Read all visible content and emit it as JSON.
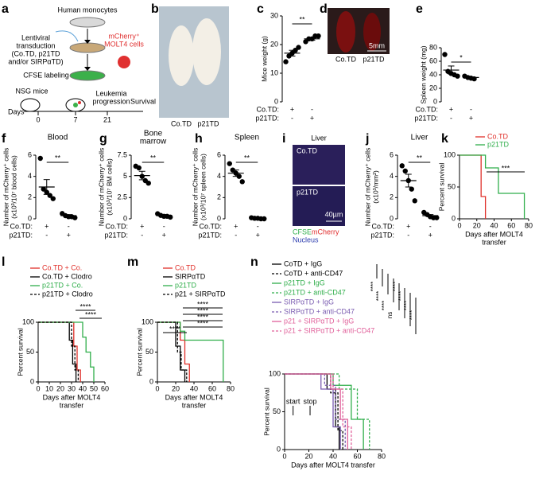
{
  "panel_labels": [
    "a",
    "b",
    "c",
    "d",
    "e",
    "f",
    "g",
    "h",
    "i",
    "j",
    "k",
    "l",
    "m",
    "n"
  ],
  "schematic": {
    "top": "Human monocytes",
    "transduction": [
      "Lentiviral",
      "transduction",
      "(Co.TD, p21TD",
      "and/or SIRPαTD)"
    ],
    "cells": [
      "mCherry⁺",
      "MOLT4 cells"
    ],
    "labeling": "CFSE labeling",
    "mice": "NSG mice",
    "days": "Days",
    "timeline": [
      0,
      7,
      21
    ],
    "progression": [
      "Leukemia",
      "progression"
    ],
    "survival": "Survival"
  },
  "photo_b": {
    "labels": [
      "Co.TD",
      "p21TD"
    ]
  },
  "photo_d": {
    "labels": [
      "Co.TD",
      "p21TD"
    ],
    "scale": "5mm"
  },
  "photo_i": {
    "title": "Liver",
    "top": "Co.TD",
    "bottom": "p21TD",
    "scale": "40µm",
    "legend": [
      "CFSE",
      "mCherry",
      "Nucleus"
    ]
  },
  "chart_data": [
    {
      "type": "dot",
      "ylabel": [
        "Mice weight (g)"
      ],
      "ylim": [
        0,
        30
      ],
      "yticks": [
        0,
        10,
        20,
        30
      ],
      "significance": "**",
      "rows": [
        {
          "label": "Co.TD:",
          "signs": [
            "+",
            "-"
          ]
        },
        {
          "label": "p21TD:",
          "signs": [
            "-",
            "+"
          ]
        }
      ],
      "series": [
        {
          "values": [
            14,
            16,
            17,
            18,
            19
          ],
          "mean": 17,
          "sem": 1
        },
        {
          "values": [
            21,
            22,
            22,
            23,
            23
          ],
          "mean": 22,
          "sem": 0.5
        }
      ]
    },
    {
      "type": "dot",
      "ylabel": [
        "Spleen weight (mg)"
      ],
      "ylim": [
        0,
        80
      ],
      "yticks": [
        0,
        20,
        40,
        60,
        80
      ],
      "significance": "*",
      "rows": [
        {
          "label": "Co.TD:",
          "signs": [
            "+",
            "-"
          ]
        },
        {
          "label": "p21TD:",
          "signs": [
            "-",
            "+"
          ]
        }
      ],
      "series": [
        {
          "values": [
            70,
            45,
            42,
            40,
            38
          ],
          "mean": 47,
          "sem": 6
        },
        {
          "values": [
            38,
            36,
            35,
            34
          ],
          "mean": 36,
          "sem": 1
        }
      ]
    },
    {
      "type": "dot",
      "title": [
        "Blood"
      ],
      "ylabel": [
        "Number of mCherry⁺ cells",
        "(x10³/10⁷ blood cells)"
      ],
      "ylim": [
        0,
        6
      ],
      "yticks": [
        0,
        2,
        4,
        6
      ],
      "significance": "**",
      "rows": [
        {
          "label": "Co.TD:",
          "signs": [
            "+",
            "-"
          ]
        },
        {
          "label": "p21TD:",
          "signs": [
            "-",
            "+"
          ]
        }
      ],
      "series": [
        {
          "values": [
            5.7,
            2.8,
            2.5,
            2.2,
            1.9
          ],
          "mean": 3,
          "sem": 0.7
        },
        {
          "values": [
            0.5,
            0.3,
            0.2,
            0.2,
            0.1
          ],
          "mean": 0.3,
          "sem": 0.1
        }
      ]
    },
    {
      "type": "dot",
      "title": [
        "Bone",
        "marrow"
      ],
      "ylabel": [
        "Number of mCherry⁺ cells",
        "(x10³/10⁷ BM cells)"
      ],
      "ylim": [
        0,
        7.5
      ],
      "yticks": [
        0,
        2.5,
        5,
        7.5
      ],
      "significance": "**",
      "rows": [
        {
          "label": "Co.TD:",
          "signs": [
            "+",
            "-"
          ]
        },
        {
          "label": "p21TD:",
          "signs": [
            "-",
            "+"
          ]
        }
      ],
      "series": [
        {
          "values": [
            6.2,
            6,
            5,
            4.5,
            4.2
          ],
          "mean": 5.1,
          "sem": 0.5
        },
        {
          "values": [
            0.6,
            0.4,
            0.3,
            0.3,
            0.2
          ],
          "mean": 0.4,
          "sem": 0.1
        }
      ]
    },
    {
      "type": "dot",
      "title": [
        "Spleen"
      ],
      "ylabel": [
        "Number of mCherry⁺ cells",
        "(x10³/10⁷ spleen cells)"
      ],
      "ylim": [
        0,
        6
      ],
      "yticks": [
        0,
        2,
        4,
        6
      ],
      "significance": "**",
      "rows": [
        {
          "label": "Co.TD:",
          "signs": [
            "+",
            "-"
          ]
        },
        {
          "label": "p21TD:",
          "signs": [
            "-",
            "+"
          ]
        }
      ],
      "series": [
        {
          "values": [
            5.2,
            4.6,
            4.3,
            4,
            3.5
          ],
          "mean": 4.3,
          "sem": 0.3
        },
        {
          "values": [
            0.1,
            0.05,
            0.05,
            0,
            0
          ],
          "mean": 0.05,
          "sem": 0.02
        }
      ]
    },
    {
      "type": "dot",
      "title": [
        "Liver"
      ],
      "ylabel": [
        "Number of mCherry⁺ cells",
        "(x10³/mm²)"
      ],
      "ylim": [
        0,
        6
      ],
      "yticks": [
        0,
        2,
        4,
        6
      ],
      "significance": "**",
      "rows": [
        {
          "label": "Co.TD:",
          "signs": [
            "+",
            "-"
          ]
        },
        {
          "label": "p21TD:",
          "signs": [
            "-",
            "+"
          ]
        }
      ],
      "series": [
        {
          "values": [
            5,
            4.5,
            3.6,
            2.8,
            1.7
          ],
          "mean": 3.6,
          "sem": 0.6
        },
        {
          "values": [
            0.6,
            0.4,
            0.2,
            0.1,
            0.1
          ],
          "mean": 0.3,
          "sem": 0.1
        }
      ]
    },
    {
      "type": "survival",
      "ylabel": "Percent survival",
      "xlabel": [
        "Days after MOLT4",
        "transfer"
      ],
      "xlim": [
        0,
        80
      ],
      "xticks": [
        0,
        20,
        40,
        60,
        80
      ],
      "ylim": [
        0,
        100
      ],
      "yticks": [
        0,
        50,
        100
      ],
      "significance": [
        "***"
      ],
      "series": [
        {
          "name": "Co.TD",
          "color": "#e0302a",
          "dash": false,
          "x": [
            0,
            25,
            25,
            30,
            30
          ],
          "y": [
            100,
            100,
            35,
            35,
            0
          ]
        },
        {
          "name": "p21TD",
          "color": "#2fae4a",
          "dash": false,
          "x": [
            0,
            30,
            30,
            45,
            45,
            75,
            75
          ],
          "y": [
            100,
            100,
            80,
            80,
            40,
            40,
            0
          ]
        }
      ]
    },
    {
      "type": "survival",
      "ylabel": "Percent survival",
      "xlabel": [
        "Days after MOLT4",
        "transfer"
      ],
      "xlim": [
        0,
        60
      ],
      "xticks": [
        0,
        10,
        20,
        30,
        40,
        50,
        60
      ],
      "ylim": [
        0,
        100
      ],
      "yticks": [
        0,
        50,
        100
      ],
      "significance": [
        "****",
        "****"
      ],
      "series": [
        {
          "name": "Co.TD + Co.",
          "color": "#e0302a",
          "dash": false,
          "x": [
            0,
            32,
            32,
            35,
            35,
            38,
            38
          ],
          "y": [
            100,
            100,
            60,
            60,
            20,
            20,
            0
          ]
        },
        {
          "name": "Co.TD + Clodro",
          "color": "#000000",
          "dash": false,
          "x": [
            0,
            28,
            28,
            31,
            31,
            34,
            34
          ],
          "y": [
            100,
            100,
            70,
            70,
            30,
            30,
            0
          ]
        },
        {
          "name": "p21TD + Co.",
          "color": "#2fae4a",
          "dash": false,
          "x": [
            0,
            40,
            40,
            43,
            43,
            47,
            47,
            50,
            50
          ],
          "y": [
            100,
            100,
            75,
            75,
            50,
            50,
            25,
            25,
            0
          ]
        },
        {
          "name": "p21TD + Clodro",
          "color": "#000000",
          "dash": true,
          "x": [
            0,
            30,
            30,
            33,
            33,
            36,
            36
          ],
          "y": [
            100,
            100,
            60,
            60,
            20,
            20,
            0
          ]
        }
      ]
    },
    {
      "type": "survival",
      "ylabel": "Percent survival",
      "xlabel": [
        "Days after MOLT4",
        "transfer"
      ],
      "xlim": [
        0,
        80
      ],
      "xticks": [
        0,
        20,
        40,
        60,
        80
      ],
      "ylim": [
        0,
        100
      ],
      "yticks": [
        0,
        50,
        100
      ],
      "significance": [
        "****",
        "****",
        "****",
        "****",
        "****"
      ],
      "series": [
        {
          "name": "Co.TD",
          "color": "#e0302a",
          "dash": false,
          "x": [
            0,
            25,
            25,
            30,
            30,
            35,
            35
          ],
          "y": [
            100,
            100,
            70,
            70,
            30,
            30,
            0
          ]
        },
        {
          "name": "SIRPαTD",
          "color": "#000000",
          "dash": false,
          "x": [
            0,
            20,
            20,
            25,
            25,
            30,
            30
          ],
          "y": [
            100,
            100,
            60,
            60,
            20,
            20,
            0
          ]
        },
        {
          "name": "p21TD",
          "color": "#2fae4a",
          "dash": false,
          "x": [
            0,
            25,
            25,
            30,
            30,
            72,
            72
          ],
          "y": [
            100,
            100,
            85,
            85,
            70,
            70,
            0
          ]
        },
        {
          "name": "p21 + SIRPαTD",
          "color": "#000000",
          "dash": true,
          "x": [
            0,
            22,
            22,
            26,
            26,
            32,
            32
          ],
          "y": [
            100,
            100,
            50,
            50,
            20,
            20,
            0
          ]
        }
      ]
    },
    {
      "type": "survival",
      "ylabel": "Percent survival",
      "xlabel": [
        "Days after MOLT4 transfer"
      ],
      "xlim": [
        0,
        80
      ],
      "xticks": [
        0,
        20,
        40,
        60,
        80
      ],
      "ylim": [
        0,
        100
      ],
      "yticks": [
        0,
        50,
        100
      ],
      "significance": [
        "****",
        "****",
        "****",
        "ns",
        "****",
        "****",
        "****",
        "****"
      ],
      "annotations": [
        {
          "label": "start",
          "x": 7
        },
        {
          "label": "stop",
          "x": 21
        }
      ],
      "series": [
        {
          "name": "CoTD + IgG",
          "color": "#000000",
          "dash": false,
          "x": [
            0,
            35,
            35,
            42,
            42,
            45,
            45
          ],
          "y": [
            100,
            100,
            80,
            80,
            30,
            30,
            0
          ]
        },
        {
          "name": "CoTD + anti-CD47",
          "color": "#000000",
          "dash": true,
          "x": [
            0,
            38,
            38,
            44,
            44,
            48,
            48
          ],
          "y": [
            100,
            100,
            75,
            75,
            25,
            25,
            0
          ]
        },
        {
          "name": "p21TD + IgG",
          "color": "#2fae4a",
          "dash": false,
          "x": [
            0,
            40,
            40,
            55,
            55,
            65,
            65
          ],
          "y": [
            100,
            100,
            85,
            85,
            40,
            40,
            0
          ]
        },
        {
          "name": "p21TD + anti-CD47",
          "color": "#2fae4a",
          "dash": true,
          "x": [
            0,
            45,
            45,
            60,
            60,
            70,
            70
          ],
          "y": [
            100,
            100,
            80,
            80,
            40,
            40,
            0
          ]
        },
        {
          "name": "SIRPαTD + IgG",
          "color": "#7a5cb0",
          "dash": false,
          "x": [
            0,
            30,
            30,
            40,
            40,
            46,
            46
          ],
          "y": [
            100,
            100,
            80,
            80,
            30,
            30,
            0
          ]
        },
        {
          "name": "SIRPαTD + anti-CD47",
          "color": "#7a5cb0",
          "dash": true,
          "x": [
            0,
            33,
            33,
            42,
            42,
            50,
            50
          ],
          "y": [
            100,
            100,
            85,
            85,
            40,
            40,
            0
          ]
        },
        {
          "name": "p21 + SIRPαTD + IgG",
          "color": "#e0609a",
          "dash": false,
          "x": [
            0,
            38,
            38,
            46,
            46,
            52,
            52
          ],
          "y": [
            100,
            100,
            80,
            80,
            40,
            40,
            0
          ]
        },
        {
          "name": "p21 + SIRPαTD + anti-CD47",
          "color": "#e0609a",
          "dash": true,
          "x": [
            0,
            40,
            40,
            48,
            48,
            55,
            55
          ],
          "y": [
            100,
            100,
            80,
            80,
            30,
            30,
            0
          ]
        }
      ]
    }
  ]
}
